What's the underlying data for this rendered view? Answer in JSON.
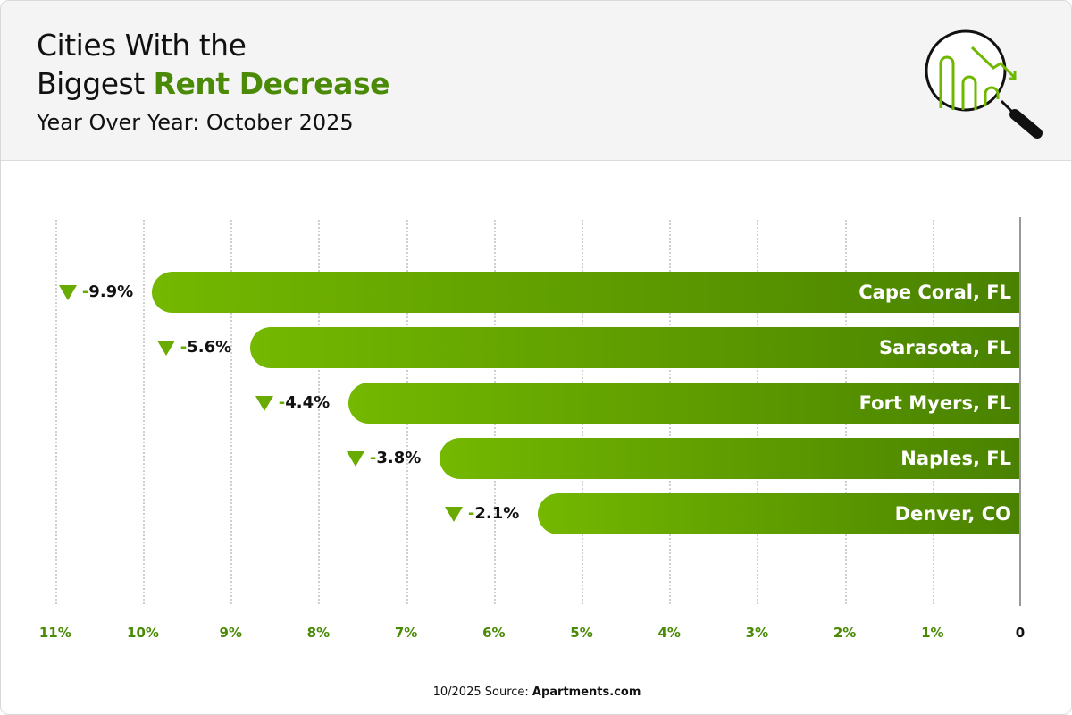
{
  "header": {
    "title_line1": "Cities With the",
    "title_line2_plain": "Biggest ",
    "title_line2_accent": "Rent Decrease",
    "subtitle": "Year Over Year: October 2025",
    "logo_icon": "magnifier-declining-bar-chart-icon"
  },
  "colors": {
    "accent": "#4a8a06",
    "bar_start": "#74b800",
    "bar_end": "#4a8200"
  },
  "chart_data": {
    "type": "bar",
    "orientation": "horizontal",
    "categories": [
      "Cape Coral, FL",
      "Sarasota, FL",
      "Fort Myers, FL",
      "Naples, FL",
      "Denver, CO"
    ],
    "values": [
      -9.9,
      -5.6,
      -4.4,
      -3.8,
      -2.1
    ],
    "value_labels": [
      "-9.9%",
      "-5.6%",
      "-4.4%",
      "-3.8%",
      "-2.1%"
    ],
    "xticks": [
      "11%",
      "10%",
      "9%",
      "8%",
      "7%",
      "6%",
      "5%",
      "4%",
      "3%",
      "2%",
      "1%",
      "0"
    ],
    "xlim": [
      11,
      0
    ],
    "grid": true
  },
  "footer": {
    "source_prefix": "10/2025 Source: ",
    "source_name": "Apartments.com"
  }
}
